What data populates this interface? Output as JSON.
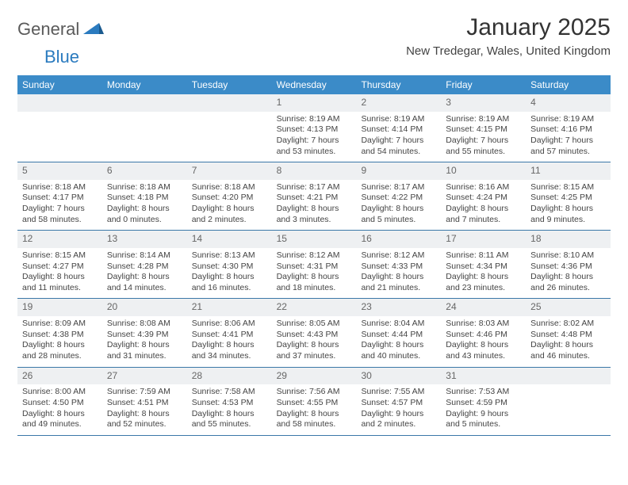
{
  "brand": {
    "part1": "General",
    "part2": "Blue"
  },
  "title": "January 2025",
  "location": "New Tredegar, Wales, United Kingdom",
  "colors": {
    "header_bg": "#3b8bc8",
    "header_text": "#ffffff",
    "daynum_bg": "#eef0f2",
    "row_border": "#3b78a8",
    "brand_gray": "#5a5a5a",
    "brand_blue": "#2b7bbf"
  },
  "day_names": [
    "Sunday",
    "Monday",
    "Tuesday",
    "Wednesday",
    "Thursday",
    "Friday",
    "Saturday"
  ],
  "weeks": [
    [
      null,
      null,
      null,
      {
        "n": "1",
        "sr": "8:19 AM",
        "ss": "4:13 PM",
        "dl": "7 hours and 53 minutes."
      },
      {
        "n": "2",
        "sr": "8:19 AM",
        "ss": "4:14 PM",
        "dl": "7 hours and 54 minutes."
      },
      {
        "n": "3",
        "sr": "8:19 AM",
        "ss": "4:15 PM",
        "dl": "7 hours and 55 minutes."
      },
      {
        "n": "4",
        "sr": "8:19 AM",
        "ss": "4:16 PM",
        "dl": "7 hours and 57 minutes."
      }
    ],
    [
      {
        "n": "5",
        "sr": "8:18 AM",
        "ss": "4:17 PM",
        "dl": "7 hours and 58 minutes."
      },
      {
        "n": "6",
        "sr": "8:18 AM",
        "ss": "4:18 PM",
        "dl": "8 hours and 0 minutes."
      },
      {
        "n": "7",
        "sr": "8:18 AM",
        "ss": "4:20 PM",
        "dl": "8 hours and 2 minutes."
      },
      {
        "n": "8",
        "sr": "8:17 AM",
        "ss": "4:21 PM",
        "dl": "8 hours and 3 minutes."
      },
      {
        "n": "9",
        "sr": "8:17 AM",
        "ss": "4:22 PM",
        "dl": "8 hours and 5 minutes."
      },
      {
        "n": "10",
        "sr": "8:16 AM",
        "ss": "4:24 PM",
        "dl": "8 hours and 7 minutes."
      },
      {
        "n": "11",
        "sr": "8:15 AM",
        "ss": "4:25 PM",
        "dl": "8 hours and 9 minutes."
      }
    ],
    [
      {
        "n": "12",
        "sr": "8:15 AM",
        "ss": "4:27 PM",
        "dl": "8 hours and 11 minutes."
      },
      {
        "n": "13",
        "sr": "8:14 AM",
        "ss": "4:28 PM",
        "dl": "8 hours and 14 minutes."
      },
      {
        "n": "14",
        "sr": "8:13 AM",
        "ss": "4:30 PM",
        "dl": "8 hours and 16 minutes."
      },
      {
        "n": "15",
        "sr": "8:12 AM",
        "ss": "4:31 PM",
        "dl": "8 hours and 18 minutes."
      },
      {
        "n": "16",
        "sr": "8:12 AM",
        "ss": "4:33 PM",
        "dl": "8 hours and 21 minutes."
      },
      {
        "n": "17",
        "sr": "8:11 AM",
        "ss": "4:34 PM",
        "dl": "8 hours and 23 minutes."
      },
      {
        "n": "18",
        "sr": "8:10 AM",
        "ss": "4:36 PM",
        "dl": "8 hours and 26 minutes."
      }
    ],
    [
      {
        "n": "19",
        "sr": "8:09 AM",
        "ss": "4:38 PM",
        "dl": "8 hours and 28 minutes."
      },
      {
        "n": "20",
        "sr": "8:08 AM",
        "ss": "4:39 PM",
        "dl": "8 hours and 31 minutes."
      },
      {
        "n": "21",
        "sr": "8:06 AM",
        "ss": "4:41 PM",
        "dl": "8 hours and 34 minutes."
      },
      {
        "n": "22",
        "sr": "8:05 AM",
        "ss": "4:43 PM",
        "dl": "8 hours and 37 minutes."
      },
      {
        "n": "23",
        "sr": "8:04 AM",
        "ss": "4:44 PM",
        "dl": "8 hours and 40 minutes."
      },
      {
        "n": "24",
        "sr": "8:03 AM",
        "ss": "4:46 PM",
        "dl": "8 hours and 43 minutes."
      },
      {
        "n": "25",
        "sr": "8:02 AM",
        "ss": "4:48 PM",
        "dl": "8 hours and 46 minutes."
      }
    ],
    [
      {
        "n": "26",
        "sr": "8:00 AM",
        "ss": "4:50 PM",
        "dl": "8 hours and 49 minutes."
      },
      {
        "n": "27",
        "sr": "7:59 AM",
        "ss": "4:51 PM",
        "dl": "8 hours and 52 minutes."
      },
      {
        "n": "28",
        "sr": "7:58 AM",
        "ss": "4:53 PM",
        "dl": "8 hours and 55 minutes."
      },
      {
        "n": "29",
        "sr": "7:56 AM",
        "ss": "4:55 PM",
        "dl": "8 hours and 58 minutes."
      },
      {
        "n": "30",
        "sr": "7:55 AM",
        "ss": "4:57 PM",
        "dl": "9 hours and 2 minutes."
      },
      {
        "n": "31",
        "sr": "7:53 AM",
        "ss": "4:59 PM",
        "dl": "9 hours and 5 minutes."
      },
      null
    ]
  ],
  "labels": {
    "sunrise": "Sunrise:",
    "sunset": "Sunset:",
    "daylight": "Daylight:"
  }
}
